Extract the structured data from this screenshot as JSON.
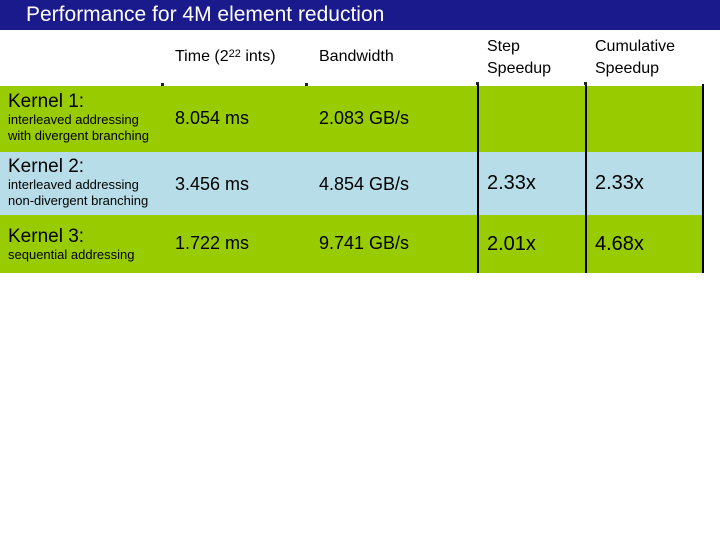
{
  "title": "Performance for 4M element reduction",
  "headers": {
    "time_prefix": "Time (2",
    "time_exp": "22",
    "time_suffix": " ints)",
    "bandwidth": "Bandwidth",
    "step_line1": "Step",
    "step_line2": "Speedup",
    "cum_line1": "Cumulative",
    "cum_line2": "Speedup"
  },
  "rows": [
    {
      "kernel": "Kernel 1:",
      "desc_line1": "interleaved addressing",
      "desc_line2": "with divergent branching",
      "time": "8.054 ms",
      "bandwidth": "2.083 GB/s",
      "step": "",
      "cumulative": "",
      "bg": "#99cc00"
    },
    {
      "kernel": "Kernel 2:",
      "desc_line1": "interleaved addressing",
      "desc_line2": "non-divergent branching",
      "time": "3.456 ms",
      "bandwidth": "4.854 GB/s",
      "step": "2.33x",
      "cumulative": "2.33x",
      "bg": "#b7dde8"
    },
    {
      "kernel": "Kernel 3:",
      "desc_line1": "sequential addressing",
      "desc_line2": "",
      "time": "1.722 ms",
      "bandwidth": "9.741 GB/s",
      "step": "2.01x",
      "cumulative": "4.68x",
      "bg": "#99cc00"
    }
  ],
  "colors": {
    "title_bar": "#1a1a8c",
    "row_green": "#99cc00",
    "row_blue": "#b7dde8"
  }
}
